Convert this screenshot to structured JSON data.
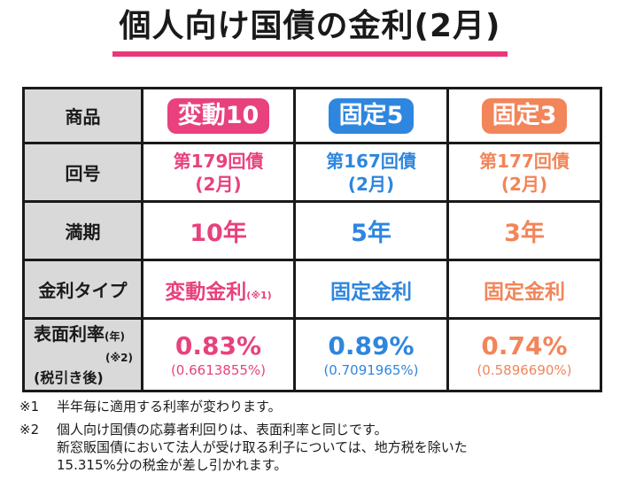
{
  "title": "個人向け国債の金利(2月)",
  "row_labels": {
    "product": "商品",
    "issue": "回号",
    "maturity": "満期",
    "rate_type": "金利タイプ",
    "rate_line1": "表面利率",
    "rate_year": "(年)",
    "rate_note": "(※2)",
    "rate_line3": "(税引き後)"
  },
  "products": [
    {
      "name": "変動10",
      "issue_line1": "第179回債",
      "issue_line2": "(2月)",
      "maturity": "10年",
      "rate_type": "変動金利",
      "rate_type_note": "(※1)",
      "rate": "0.83%",
      "rate_after_tax": "(0.6613855%)",
      "color": "#e8417e"
    },
    {
      "name": "固定5",
      "issue_line1": "第167回債",
      "issue_line2": "(2月)",
      "maturity": "5年",
      "rate_type": "固定金利",
      "rate_type_note": "",
      "rate": "0.89%",
      "rate_after_tax": "(0.7091965%)",
      "color": "#2e86de"
    },
    {
      "name": "固定3",
      "issue_line1": "第177回債",
      "issue_line2": "(2月)",
      "maturity": "3年",
      "rate_type": "固定金利",
      "rate_type_note": "",
      "rate": "0.74%",
      "rate_after_tax": "(0.5896690%)",
      "color": "#f2855a"
    }
  ],
  "notes": [
    {
      "mark": "※1",
      "lines": [
        "半年毎に適用する利率が変わります。"
      ]
    },
    {
      "mark": "※2",
      "lines": [
        "個人向け国債の応募者利回りは、表面利率と同じです。",
        "新窓販国債において法人が受け取る利子については、地方税を除いた",
        "15.315%分の税金が差し引かれます。"
      ]
    }
  ]
}
